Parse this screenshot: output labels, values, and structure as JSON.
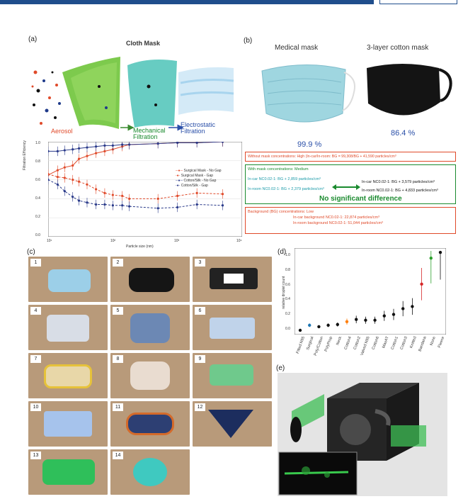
{
  "panel_a": {
    "label": "(a)",
    "title": "Cloth Mask",
    "aerosol": "Aerosol",
    "mechanical": "Mechanical\nFiltration",
    "electrostatic": "Electrostatic\nFiltration",
    "xlabel": "Particle size (nm)",
    "ylabel": "Filtration Efficiency",
    "legend": [
      "Surgical Mask - No Gap",
      "Surgical Mask - Gap",
      "Cotton/Silk - No Gap",
      "Cotton/Silk - Gap"
    ],
    "ytick_labels": [
      "1.0",
      "0.8",
      "0.6",
      "0.4",
      "0.2",
      "0.0"
    ],
    "xtick_labels": [
      "10¹",
      "10²",
      "10³",
      "10⁴"
    ]
  },
  "panel_b": {
    "label": "(b)",
    "medical_title": "Medical mask",
    "cotton_title": "3-layer cotton mask",
    "medical_pct": "99.9 %",
    "cotton_pct": "86.4 %",
    "box1": "Without mask concentrations: High (In-car/In-room: BG = 99,308/BG + 41,590 particles/cm³",
    "box2_title": "With mask concentrations: Medium",
    "box2_l1": "In-car NC0.02-1: BG + 2,859 particles/cm³",
    "box2_l2": "In-room NC0.02-1: BG + 2,379 particles/cm³",
    "box2_r1": "In-car NC0.02-1: BG + 3,579 particles/cm³",
    "box2_r2": "In-room NC0.02-1: BG + 4,833 particles/cm³",
    "box2_note": "No significant difference",
    "box3_title": "Background (BG) concentrations: Low",
    "box3_l1": "In-car background NC0.02-1: 22,874 particles/cm³",
    "box3_l2": "In-room background NC0.02-1: 51,044 particles/cm³"
  },
  "panel_c": {
    "label": "(c)",
    "photos": [
      "1",
      "2",
      "3",
      "4",
      "5",
      "6",
      "7",
      "8",
      "9",
      "10",
      "11",
      "12",
      "13",
      "14"
    ]
  },
  "panel_d": {
    "label": "(d)",
    "ylabel": "relative droplet count",
    "ytick_labels": [
      "1.0",
      "0.8",
      "0.6",
      "0.4",
      "0.2",
      "0.0"
    ]
  },
  "panel_e": {
    "label": "(e)"
  },
  "chart_data": [
    {
      "type": "line",
      "xlabel": "Particle size (nm)",
      "ylabel": "Filtration Efficiency",
      "ylim": [
        0.0,
        1.0
      ],
      "xscale": "log",
      "series": [
        {
          "name": "Surgical Mask - No Gap",
          "color": "#e04a2a",
          "dash": "solid",
          "x": [
            10,
            14,
            18,
            24,
            30,
            40,
            55,
            75,
            100,
            140,
            180,
            500,
            1000,
            2000,
            5000
          ],
          "y": [
            0.65,
            0.7,
            0.73,
            0.75,
            0.82,
            0.85,
            0.88,
            0.9,
            0.92,
            0.95,
            0.97,
            0.98,
            0.99,
            0.99,
            1.0
          ]
        },
        {
          "name": "Surgical Mask - Gap",
          "color": "#e04a2a",
          "dash": "dashed",
          "x": [
            10,
            14,
            18,
            24,
            30,
            40,
            55,
            75,
            100,
            140,
            180,
            500,
            1000,
            2000,
            5000
          ],
          "y": [
            0.66,
            0.63,
            0.62,
            0.6,
            0.58,
            0.55,
            0.5,
            0.46,
            0.44,
            0.43,
            0.4,
            0.4,
            0.43,
            0.46,
            0.45
          ]
        },
        {
          "name": "Cotton/Silk - No Gap",
          "color": "#2a3a8a",
          "dash": "solid",
          "x": [
            10,
            14,
            18,
            24,
            30,
            40,
            55,
            75,
            100,
            140,
            180,
            500,
            1000,
            2000,
            5000
          ],
          "y": [
            0.9,
            0.9,
            0.91,
            0.92,
            0.93,
            0.94,
            0.95,
            0.96,
            0.96,
            0.97,
            0.97,
            0.98,
            0.99,
            0.99,
            1.0
          ]
        },
        {
          "name": "Cotton/Silk - Gap",
          "color": "#2a3a8a",
          "dash": "dashed",
          "x": [
            10,
            14,
            18,
            24,
            30,
            40,
            55,
            75,
            100,
            140,
            180,
            500,
            1000,
            2000,
            5000
          ],
          "y": [
            0.6,
            0.55,
            0.48,
            0.42,
            0.38,
            0.36,
            0.34,
            0.34,
            0.33,
            0.33,
            0.32,
            0.3,
            0.31,
            0.34,
            0.33
          ]
        }
      ]
    },
    {
      "type": "scatter",
      "ylabel": "relative droplet count",
      "ylim": [
        0.0,
        1.1
      ],
      "categories": [
        "Fitted N95",
        "Surgical",
        "Poly/Cotton",
        "PolyProp",
        "Neck",
        "Cotton4",
        "Cotton2",
        "Valved N95",
        "Cotton6",
        "MaxAT",
        "Cotton1",
        "Cotton3",
        "Knitted",
        "Bandana",
        "None",
        "Fleece"
      ],
      "values": [
        0.0,
        0.07,
        0.05,
        0.07,
        0.08,
        0.12,
        0.15,
        0.14,
        0.14,
        0.2,
        0.22,
        0.3,
        0.33,
        0.64,
        1.0,
        1.08
      ],
      "colors": [
        "#111111",
        "#1f77b4",
        "#111111",
        "#111111",
        "#111111",
        "#ff7f0e",
        "#111111",
        "#111111",
        "#111111",
        "#111111",
        "#111111",
        "#111111",
        "#111111",
        "#d62728",
        "#2ca02c",
        "#111111"
      ]
    }
  ]
}
